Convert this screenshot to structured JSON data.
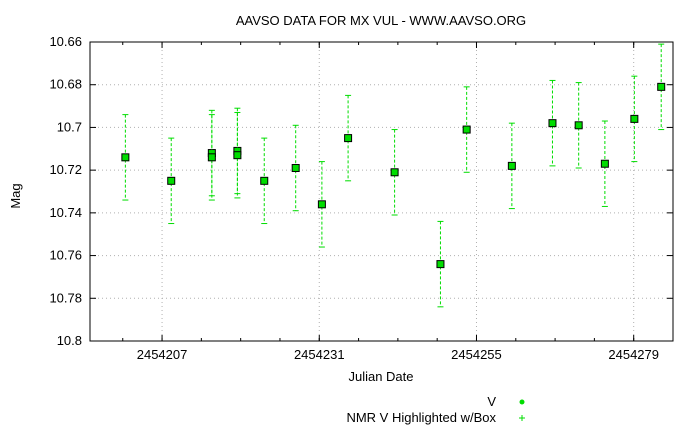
{
  "chart_data": {
    "type": "scatter",
    "title": "AAVSO DATA FOR MX VUL - WWW.AAVSO.ORG",
    "xlabel": "Julian Date",
    "ylabel": "Mag",
    "xlim": [
      2454196,
      2454285
    ],
    "ylim": [
      10.66,
      10.8
    ],
    "y_inverted": true,
    "grid": true,
    "x_ticks": [
      2454207,
      2454231,
      2454255,
      2454279
    ],
    "x_tick_labels": [
      "2454207",
      "2454231",
      "2454255",
      "2454279"
    ],
    "y_ticks": [
      10.66,
      10.68,
      10.7,
      10.72,
      10.74,
      10.76,
      10.78,
      10.8
    ],
    "y_tick_labels": [
      "10.66",
      "10.68",
      "10.7",
      "10.72",
      "10.74",
      "10.76",
      "10.78",
      "10.8"
    ],
    "legend_placement": "bottom-right",
    "series": [
      {
        "name": "V",
        "color": "#00dd00",
        "points": [
          {
            "x": 2454201.4,
            "y": 10.714,
            "err": 0.02
          },
          {
            "x": 2454208.4,
            "y": 10.725,
            "err": 0.02
          },
          {
            "x": 2454214.6,
            "y": 10.712,
            "err": 0.02
          },
          {
            "x": 2454214.6,
            "y": 10.714,
            "err": 0.02
          },
          {
            "x": 2454218.5,
            "y": 10.711,
            "err": 0.02
          },
          {
            "x": 2454218.5,
            "y": 10.713,
            "err": 0.02
          },
          {
            "x": 2454222.6,
            "y": 10.725,
            "err": 0.02
          },
          {
            "x": 2454227.4,
            "y": 10.719,
            "err": 0.02
          },
          {
            "x": 2454231.4,
            "y": 10.736,
            "err": 0.02
          },
          {
            "x": 2454235.4,
            "y": 10.705,
            "err": 0.02
          },
          {
            "x": 2454242.5,
            "y": 10.721,
            "err": 0.02
          },
          {
            "x": 2454249.5,
            "y": 10.764,
            "err": 0.02
          },
          {
            "x": 2454253.5,
            "y": 10.701,
            "err": 0.02
          },
          {
            "x": 2454260.4,
            "y": 10.718,
            "err": 0.02
          },
          {
            "x": 2454266.6,
            "y": 10.698,
            "err": 0.02
          },
          {
            "x": 2454270.6,
            "y": 10.699,
            "err": 0.02
          },
          {
            "x": 2454274.6,
            "y": 10.717,
            "err": 0.02
          },
          {
            "x": 2454279.1,
            "y": 10.696,
            "err": 0.02
          },
          {
            "x": 2454283.2,
            "y": 10.681,
            "err": 0.02
          }
        ]
      }
    ],
    "legend": [
      {
        "label": "V",
        "symbol": "point",
        "color": "#00dd00"
      },
      {
        "label": "NMR V Highlighted w/Box",
        "symbol": "plus",
        "color": "#00dd00"
      }
    ]
  }
}
